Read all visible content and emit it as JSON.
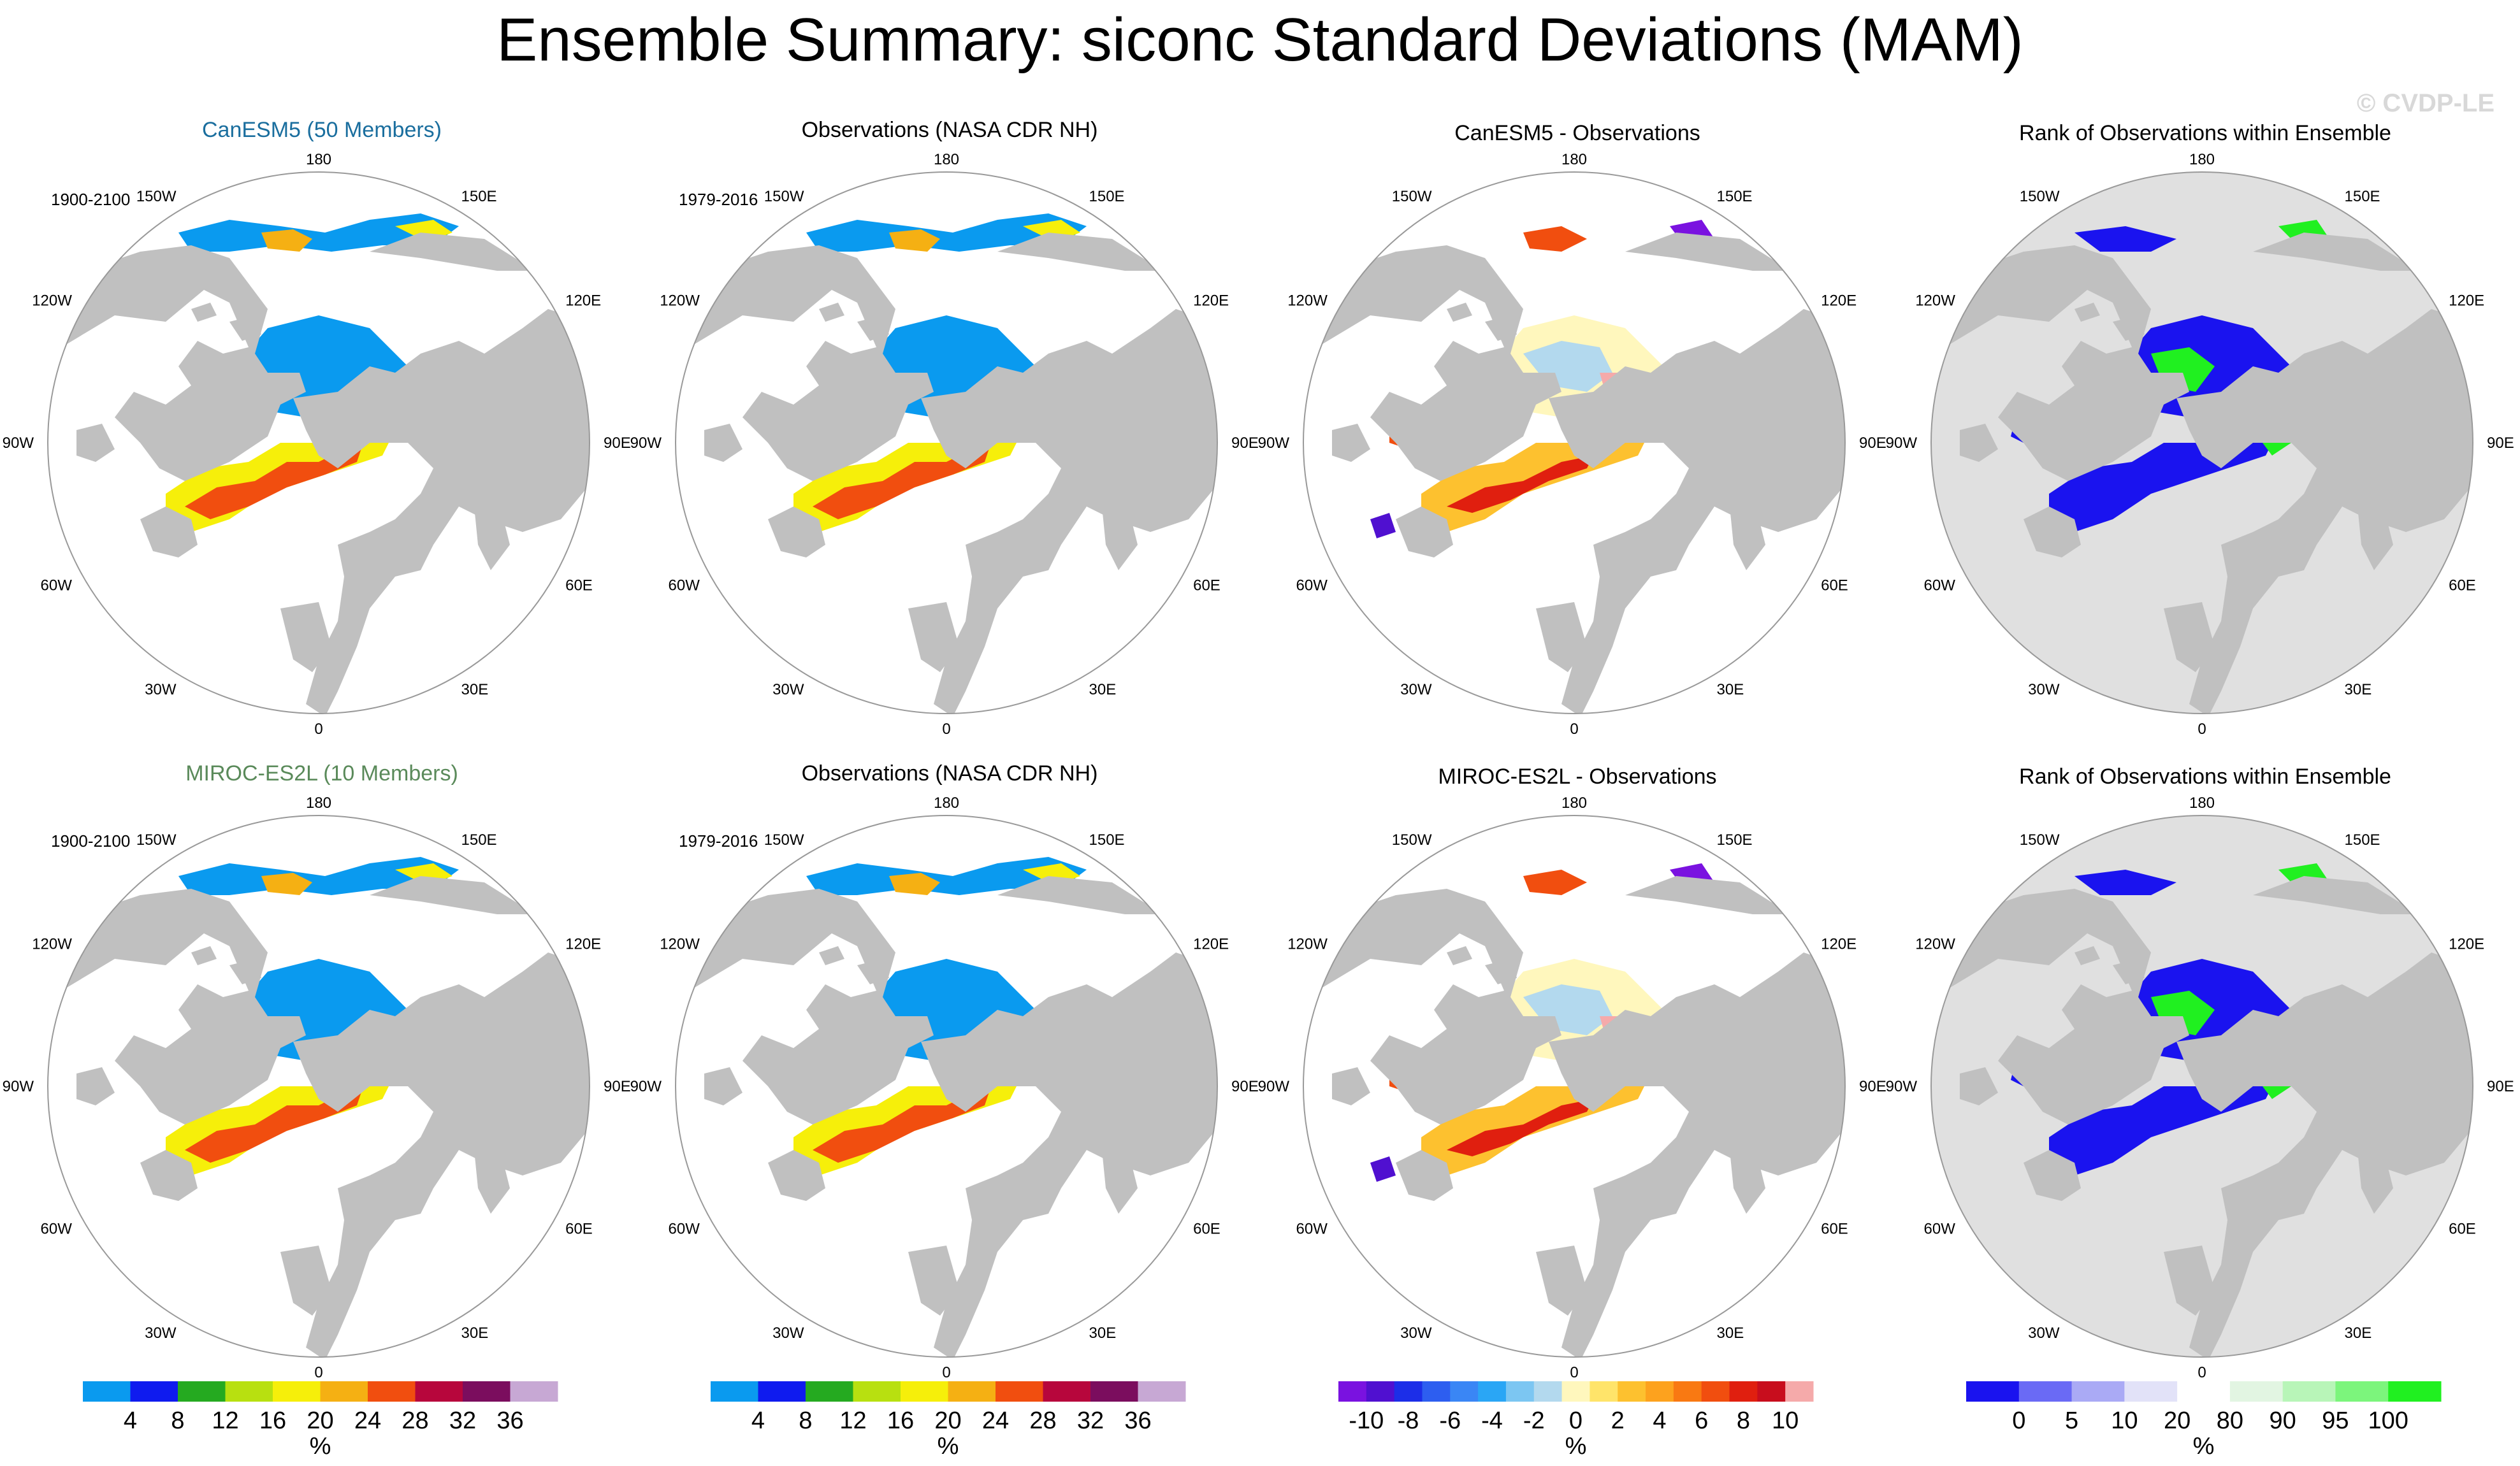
{
  "title": "Ensemble Summary: siconc Standard Deviations (MAM)",
  "watermark": "© CVDP-LE",
  "colors": {
    "land": "#c0c0c0",
    "ocean": "#ffffff",
    "rank_background": "#e0e0e0",
    "canesm5_title": "#1a6e9e",
    "miroc_title": "#5a8a5a"
  },
  "grid_labels": [
    "180",
    "150E",
    "120E",
    "90E",
    "60E",
    "30E",
    "0",
    "30W",
    "60W",
    "90W",
    "120W",
    "150W"
  ],
  "panels": [
    {
      "title": "CanESM5 (50 Members)",
      "title_color": "#1a6e9e",
      "period": "1900-2100",
      "kind": "std"
    },
    {
      "title": "Observations (NASA CDR NH)",
      "title_color": "#000000",
      "period": "1979-2016",
      "kind": "std"
    },
    {
      "title": "CanESM5 - Observations",
      "title_color": "#000000",
      "period": "",
      "kind": "diff"
    },
    {
      "title": "Rank of Observations within Ensemble",
      "title_color": "#000000",
      "period": "",
      "kind": "rank"
    },
    {
      "title": "MIROC-ES2L (10 Members)",
      "title_color": "#5a8a5a",
      "period": "1900-2100",
      "kind": "std"
    },
    {
      "title": "Observations (NASA CDR NH)",
      "title_color": "#000000",
      "period": "1979-2016",
      "kind": "std"
    },
    {
      "title": "MIROC-ES2L - Observations",
      "title_color": "#000000",
      "period": "",
      "kind": "diff"
    },
    {
      "title": "Rank of Observations within Ensemble",
      "title_color": "#000000",
      "period": "",
      "kind": "rank"
    }
  ],
  "chart_data": [
    {
      "type": "colorbar",
      "name": "std-colorbar-1",
      "colors": [
        "#0a9aef",
        "#0f1bef",
        "#25aa20",
        "#b8e010",
        "#f6ef0a",
        "#f5b013",
        "#f14e0f",
        "#b7063c",
        "#7b0d5e",
        "#c7a8d4"
      ],
      "tick_labels": [
        "4",
        "8",
        "12",
        "16",
        "20",
        "24",
        "28",
        "32",
        "36"
      ],
      "unit": "%"
    },
    {
      "type": "colorbar",
      "name": "std-colorbar-2",
      "colors": [
        "#0a9aef",
        "#0f1bef",
        "#25aa20",
        "#b8e010",
        "#f6ef0a",
        "#f5b013",
        "#f14e0f",
        "#b7063c",
        "#7b0d5e",
        "#c7a8d4"
      ],
      "tick_labels": [
        "4",
        "8",
        "12",
        "16",
        "20",
        "24",
        "28",
        "32",
        "36"
      ],
      "unit": "%"
    },
    {
      "type": "colorbar",
      "name": "diff-colorbar",
      "colors": [
        "#7a12e0",
        "#5010d0",
        "#1c2ee8",
        "#2d5ef0",
        "#3a86f5",
        "#2aa6f5",
        "#7cc6f2",
        "#b3d9ee",
        "#fff7bd",
        "#ffe46a",
        "#fdc12f",
        "#fda21e",
        "#f97912",
        "#f14e0f",
        "#e01f0f",
        "#c80d1d",
        "#f5aaaa"
      ],
      "tick_labels": [
        "-10",
        "-8",
        "-6",
        "-4",
        "-2",
        "0",
        "2",
        "4",
        "6",
        "8",
        "10"
      ],
      "unit": "%"
    },
    {
      "type": "colorbar",
      "name": "rank-colorbar",
      "colors": [
        "#1a13ef",
        "#6a6af5",
        "#aaaaf5",
        "#e2e2f8",
        "#ffffff",
        "#e2f5e2",
        "#b8f5b8",
        "#7cf57c",
        "#20f020"
      ],
      "tick_labels": [
        "0",
        "5",
        "10",
        "20",
        "80",
        "90",
        "95",
        "100"
      ],
      "unit": "%"
    }
  ]
}
